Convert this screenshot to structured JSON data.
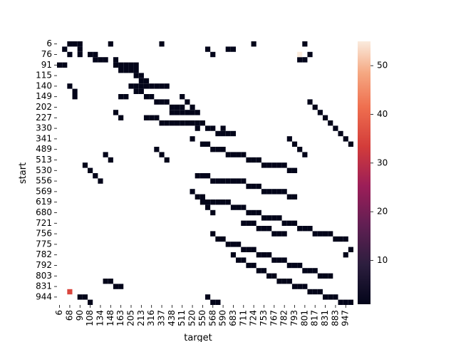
{
  "chart_data": {
    "type": "heatmap",
    "xlabel": "target",
    "ylabel": "start",
    "x_tick_labels": [
      "6",
      "68",
      "90",
      "108",
      "134",
      "148",
      "163",
      "205",
      "213",
      "316",
      "337",
      "438",
      "511",
      "520",
      "550",
      "568",
      "590",
      "683",
      "711",
      "724",
      "753",
      "767",
      "782",
      "793",
      "801",
      "817",
      "831",
      "883",
      "947"
    ],
    "y_tick_labels": [
      "6",
      "76",
      "91",
      "115",
      "140",
      "149",
      "202",
      "227",
      "330",
      "341",
      "489",
      "513",
      "530",
      "556",
      "569",
      "619",
      "680",
      "721",
      "756",
      "775",
      "782",
      "792",
      "803",
      "831",
      "944"
    ],
    "x_count": 58,
    "y_count": 50,
    "colorbar": {
      "min": 1,
      "max": 55,
      "ticks": [
        10,
        20,
        30,
        40,
        50
      ]
    },
    "colormap": "rocket",
    "background": "#ffffff",
    "grid": false,
    "cell_value_default": 1,
    "highlight_cells": [
      {
        "col": 47,
        "row": 2,
        "value": 55
      },
      {
        "col": 2,
        "row": 47,
        "value": 35
      }
    ],
    "cells": [
      [
        2,
        0
      ],
      [
        3,
        0
      ],
      [
        4,
        0
      ],
      [
        10,
        0
      ],
      [
        20,
        0
      ],
      [
        38,
        0
      ],
      [
        48,
        0
      ],
      [
        1,
        1
      ],
      [
        2,
        2
      ],
      [
        4,
        1
      ],
      [
        4,
        2
      ],
      [
        6,
        2
      ],
      [
        7,
        2
      ],
      [
        7,
        3
      ],
      [
        8,
        3
      ],
      [
        9,
        3
      ],
      [
        29,
        1
      ],
      [
        33,
        1
      ],
      [
        34,
        1
      ],
      [
        30,
        2
      ],
      [
        47,
        3
      ],
      [
        48,
        3
      ],
      [
        49,
        2
      ],
      [
        0,
        4
      ],
      [
        1,
        4
      ],
      [
        11,
        3
      ],
      [
        11,
        4
      ],
      [
        12,
        4
      ],
      [
        13,
        4
      ],
      [
        14,
        4
      ],
      [
        15,
        4
      ],
      [
        12,
        5
      ],
      [
        13,
        5
      ],
      [
        14,
        5
      ],
      [
        15,
        5
      ],
      [
        15,
        6
      ],
      [
        16,
        6
      ],
      [
        16,
        7
      ],
      [
        17,
        7
      ],
      [
        14,
        8
      ],
      [
        15,
        8
      ],
      [
        16,
        8
      ],
      [
        17,
        8
      ],
      [
        18,
        8
      ],
      [
        19,
        8
      ],
      [
        20,
        8
      ],
      [
        21,
        8
      ],
      [
        2,
        8
      ],
      [
        3,
        9
      ],
      [
        3,
        10
      ],
      [
        15,
        9
      ],
      [
        16,
        9
      ],
      [
        12,
        10
      ],
      [
        13,
        10
      ],
      [
        17,
        10
      ],
      [
        18,
        10
      ],
      [
        19,
        11
      ],
      [
        20,
        11
      ],
      [
        21,
        11
      ],
      [
        22,
        12
      ],
      [
        23,
        12
      ],
      [
        24,
        12
      ],
      [
        24,
        13
      ],
      [
        25,
        13
      ],
      [
        22,
        13
      ],
      [
        23,
        13
      ],
      [
        26,
        13
      ],
      [
        27,
        13
      ],
      [
        17,
        14
      ],
      [
        18,
        14
      ],
      [
        19,
        14
      ],
      [
        20,
        15
      ],
      [
        21,
        15
      ],
      [
        22,
        15
      ],
      [
        23,
        15
      ],
      [
        24,
        15
      ],
      [
        25,
        15
      ],
      [
        26,
        15
      ],
      [
        27,
        15
      ],
      [
        28,
        15
      ],
      [
        29,
        16
      ],
      [
        30,
        16
      ],
      [
        31,
        17
      ],
      [
        32,
        17
      ],
      [
        33,
        17
      ],
      [
        34,
        17
      ],
      [
        27,
        16
      ],
      [
        32,
        16
      ],
      [
        26,
        18
      ],
      [
        28,
        19
      ],
      [
        29,
        19
      ],
      [
        30,
        20
      ],
      [
        31,
        20
      ],
      [
        32,
        20
      ],
      [
        33,
        21
      ],
      [
        34,
        21
      ],
      [
        35,
        21
      ],
      [
        36,
        21
      ],
      [
        37,
        22
      ],
      [
        38,
        22
      ],
      [
        39,
        22
      ],
      [
        40,
        23
      ],
      [
        41,
        23
      ],
      [
        42,
        23
      ],
      [
        43,
        23
      ],
      [
        44,
        23
      ],
      [
        45,
        24
      ],
      [
        46,
        24
      ],
      [
        27,
        25
      ],
      [
        28,
        25
      ],
      [
        29,
        25
      ],
      [
        30,
        26
      ],
      [
        31,
        26
      ],
      [
        32,
        26
      ],
      [
        33,
        26
      ],
      [
        34,
        26
      ],
      [
        35,
        26
      ],
      [
        36,
        26
      ],
      [
        37,
        27
      ],
      [
        38,
        27
      ],
      [
        39,
        27
      ],
      [
        40,
        28
      ],
      [
        41,
        28
      ],
      [
        42,
        28
      ],
      [
        43,
        28
      ],
      [
        44,
        28
      ],
      [
        45,
        29
      ],
      [
        46,
        29
      ],
      [
        26,
        28
      ],
      [
        27,
        29
      ],
      [
        28,
        29
      ],
      [
        29,
        30
      ],
      [
        30,
        30
      ],
      [
        31,
        30
      ],
      [
        32,
        30
      ],
      [
        33,
        30
      ],
      [
        34,
        31
      ],
      [
        35,
        31
      ],
      [
        36,
        31
      ],
      [
        37,
        32
      ],
      [
        38,
        32
      ],
      [
        39,
        32
      ],
      [
        40,
        33
      ],
      [
        41,
        33
      ],
      [
        42,
        33
      ],
      [
        43,
        33
      ],
      [
        44,
        34
      ],
      [
        45,
        34
      ],
      [
        46,
        34
      ],
      [
        47,
        35
      ],
      [
        48,
        35
      ],
      [
        49,
        35
      ],
      [
        50,
        36
      ],
      [
        51,
        36
      ],
      [
        52,
        36
      ],
      [
        53,
        36
      ],
      [
        54,
        37
      ],
      [
        55,
        37
      ],
      [
        56,
        37
      ],
      [
        36,
        34
      ],
      [
        37,
        34
      ],
      [
        38,
        34
      ],
      [
        39,
        35
      ],
      [
        40,
        35
      ],
      [
        41,
        35
      ],
      [
        42,
        36
      ],
      [
        43,
        36
      ],
      [
        44,
        36
      ],
      [
        30,
        36
      ],
      [
        31,
        37
      ],
      [
        32,
        37
      ],
      [
        33,
        38
      ],
      [
        34,
        38
      ],
      [
        35,
        38
      ],
      [
        36,
        39
      ],
      [
        37,
        39
      ],
      [
        38,
        39
      ],
      [
        39,
        40
      ],
      [
        40,
        40
      ],
      [
        41,
        40
      ],
      [
        42,
        41
      ],
      [
        43,
        41
      ],
      [
        44,
        41
      ],
      [
        45,
        42
      ],
      [
        46,
        42
      ],
      [
        47,
        42
      ],
      [
        48,
        43
      ],
      [
        49,
        43
      ],
      [
        50,
        43
      ],
      [
        51,
        44
      ],
      [
        52,
        44
      ],
      [
        53,
        44
      ],
      [
        34,
        40
      ],
      [
        35,
        41
      ],
      [
        36,
        41
      ],
      [
        37,
        42
      ],
      [
        38,
        42
      ],
      [
        39,
        43
      ],
      [
        40,
        43
      ],
      [
        41,
        44
      ],
      [
        42,
        44
      ],
      [
        43,
        45
      ],
      [
        44,
        45
      ],
      [
        45,
        45
      ],
      [
        46,
        46
      ],
      [
        47,
        46
      ],
      [
        48,
        46
      ],
      [
        49,
        47
      ],
      [
        50,
        47
      ],
      [
        51,
        47
      ],
      [
        52,
        48
      ],
      [
        53,
        48
      ],
      [
        54,
        48
      ],
      [
        55,
        49
      ],
      [
        56,
        49
      ],
      [
        57,
        49
      ],
      [
        9,
        45
      ],
      [
        10,
        45
      ],
      [
        11,
        46
      ],
      [
        12,
        46
      ],
      [
        2,
        47
      ],
      [
        4,
        48
      ],
      [
        5,
        48
      ],
      [
        6,
        49
      ],
      [
        29,
        48
      ],
      [
        30,
        49
      ],
      [
        31,
        49
      ],
      [
        57,
        39
      ],
      [
        56,
        40
      ],
      [
        9,
        21
      ],
      [
        10,
        22
      ],
      [
        5,
        23
      ],
      [
        6,
        24
      ],
      [
        7,
        25
      ],
      [
        8,
        26
      ],
      [
        19,
        20
      ],
      [
        20,
        21
      ],
      [
        21,
        22
      ],
      [
        11,
        13
      ],
      [
        12,
        14
      ],
      [
        24,
        10
      ],
      [
        25,
        11
      ],
      [
        26,
        12
      ],
      [
        45,
        18
      ],
      [
        46,
        19
      ],
      [
        47,
        20
      ],
      [
        48,
        21
      ],
      [
        28,
        30
      ],
      [
        29,
        31
      ],
      [
        30,
        32
      ],
      [
        47,
        2
      ],
      [
        49,
        11
      ],
      [
        50,
        12
      ],
      [
        51,
        13
      ],
      [
        52,
        14
      ],
      [
        53,
        15
      ],
      [
        54,
        16
      ],
      [
        55,
        17
      ],
      [
        56,
        18
      ],
      [
        57,
        19
      ]
    ]
  }
}
